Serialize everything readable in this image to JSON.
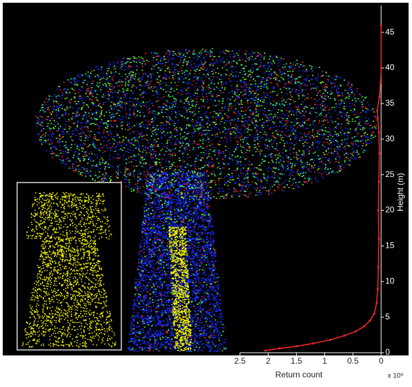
{
  "chart_data": {
    "type": "line",
    "x_label": "Return count",
    "x_multiplier": "x 10⁵",
    "y_label": "Height (m)",
    "xlim": [
      2.5,
      0
    ],
    "xticks": [
      2.5,
      2,
      1.5,
      1,
      0.5,
      0
    ],
    "ylim": [
      0,
      48
    ],
    "yticks": [
      0,
      5,
      10,
      15,
      20,
      25,
      30,
      35,
      40,
      45
    ],
    "series": [
      {
        "color": "#ff2a2a",
        "x": [
          2.05,
          1.8,
          1.5,
          1.2,
          0.9,
          0.65,
          0.45,
          0.3,
          0.2,
          0.12,
          0.08,
          0.06,
          0.05,
          0.04,
          0.05,
          0.04,
          0.03,
          0.04,
          0.06,
          0.07,
          0.03,
          0.01,
          0,
          0
        ],
        "y": [
          0.3,
          0.6,
          0.9,
          1.3,
          1.8,
          2.4,
          3,
          3.7,
          4.5,
          5.5,
          7,
          9,
          12,
          16,
          20,
          24,
          28,
          31,
          33,
          34,
          36,
          38,
          40,
          46
        ]
      }
    ]
  }
}
